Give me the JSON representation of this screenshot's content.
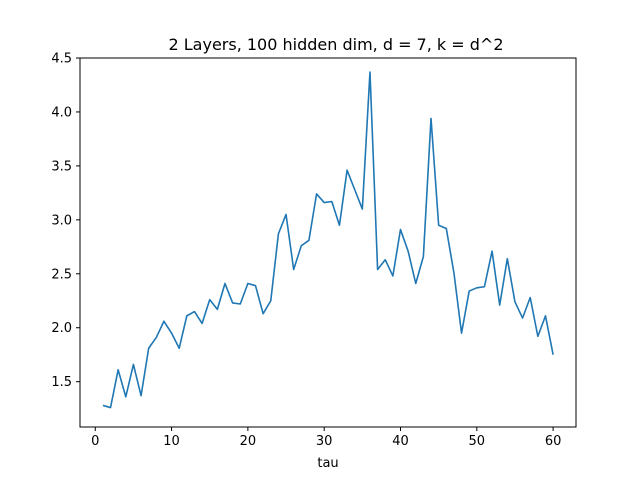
{
  "chart_data": {
    "type": "line",
    "title": "2 Layers, 100 hidden dim, d = 7, k = d^2",
    "xlabel": "tau",
    "ylabel": "",
    "xlim": [
      -2,
      63
    ],
    "ylim": [
      1.08,
      4.5
    ],
    "xticks": [
      0,
      10,
      20,
      30,
      40,
      50,
      60
    ],
    "yticks": [
      1.5,
      2.0,
      2.5,
      3.0,
      3.5,
      4.0,
      4.5
    ],
    "grid": false,
    "line_color": "#1f77b4",
    "series": [
      {
        "x": [
          1,
          2,
          3,
          4,
          5,
          6,
          7,
          8,
          9,
          10,
          11,
          12,
          13,
          14,
          15,
          16,
          17,
          18,
          19,
          20,
          21,
          22,
          23,
          24,
          25,
          26,
          27,
          28,
          29,
          30,
          31,
          32,
          33,
          34,
          35,
          36,
          37,
          38,
          39,
          40,
          41,
          42,
          43,
          44,
          45,
          46,
          47,
          48,
          49,
          50,
          51,
          52,
          53,
          54,
          55,
          56,
          57,
          58,
          59,
          60
        ],
        "values": [
          1.28,
          1.26,
          1.61,
          1.36,
          1.66,
          1.37,
          1.81,
          1.91,
          2.06,
          1.95,
          1.81,
          2.11,
          2.15,
          2.04,
          2.26,
          2.17,
          2.41,
          2.23,
          2.22,
          2.41,
          2.39,
          2.13,
          2.25,
          2.87,
          3.05,
          2.54,
          2.76,
          2.81,
          3.24,
          3.16,
          3.17,
          2.95,
          3.46,
          3.28,
          3.1,
          4.37,
          2.54,
          2.63,
          2.48,
          2.91,
          2.71,
          2.41,
          2.66,
          3.94,
          2.95,
          2.92,
          2.51,
          1.95,
          2.34,
          2.37,
          2.38,
          2.71,
          2.21,
          2.64,
          2.24,
          2.09,
          2.28,
          1.92,
          2.11,
          1.75
        ]
      }
    ]
  }
}
